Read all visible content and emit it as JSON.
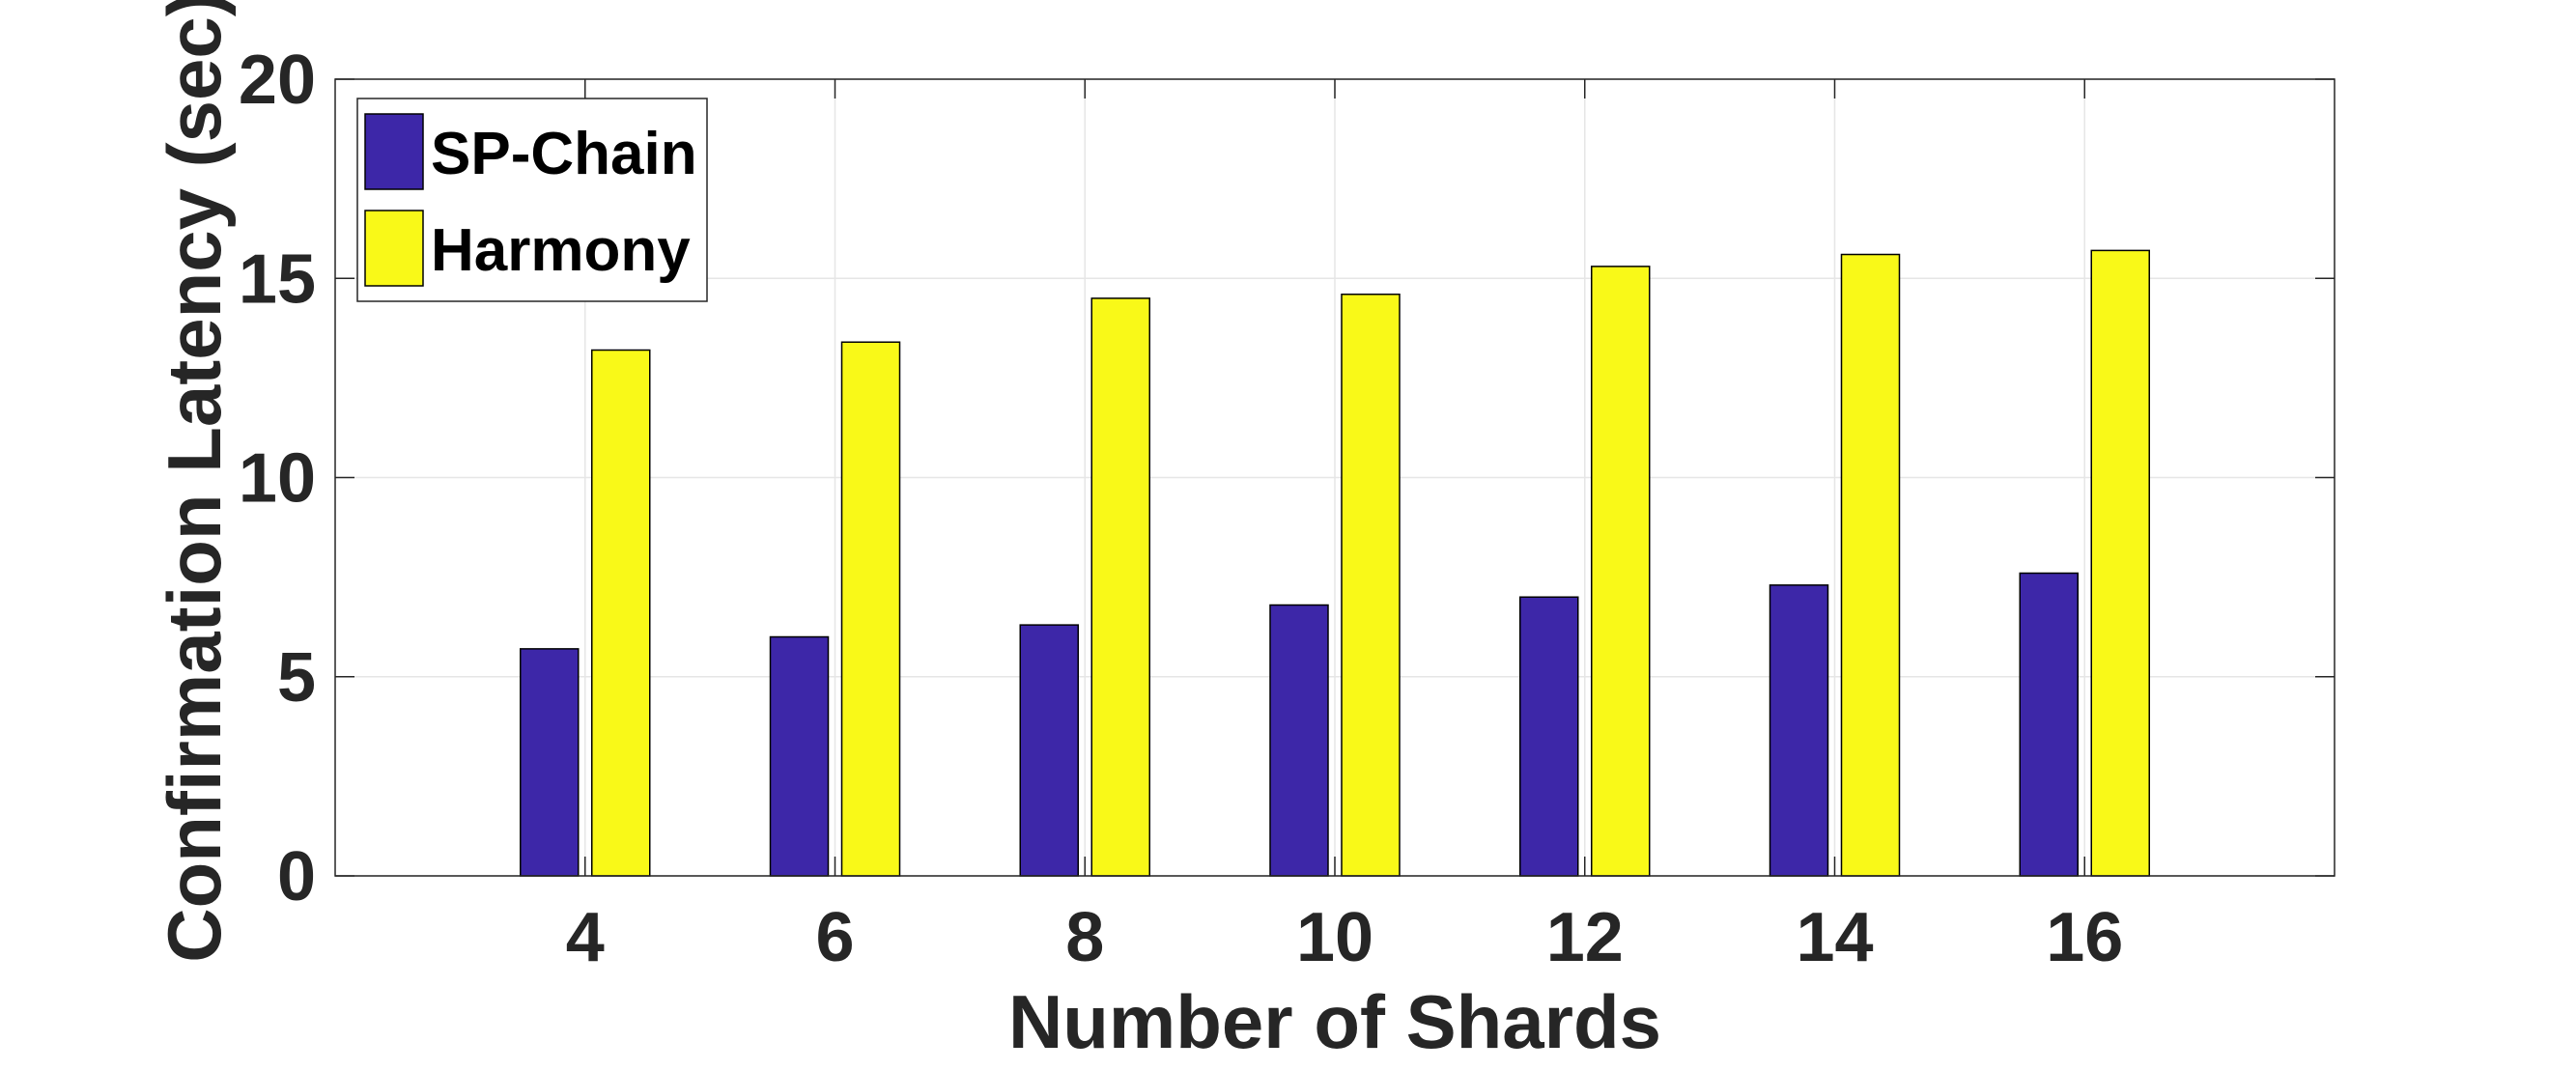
{
  "chart_data": {
    "type": "bar",
    "title": "",
    "xlabel": "Number of Shards",
    "ylabel": "Confirmation Latency (sec)",
    "categories": [
      "4",
      "6",
      "8",
      "10",
      "12",
      "14",
      "16"
    ],
    "series": [
      {
        "name": "SP-Chain",
        "color": "#3d27a8",
        "values": [
          5.7,
          6.0,
          6.3,
          6.8,
          7.0,
          7.3,
          7.6
        ]
      },
      {
        "name": "Harmony",
        "color": "#f9f918",
        "values": [
          13.2,
          13.4,
          14.5,
          14.6,
          15.3,
          15.6,
          15.7
        ]
      }
    ],
    "ylim": [
      0,
      20
    ],
    "yticks": [
      "0",
      "5",
      "10",
      "15",
      "20"
    ],
    "grid": true,
    "legend_position": "top-left"
  }
}
